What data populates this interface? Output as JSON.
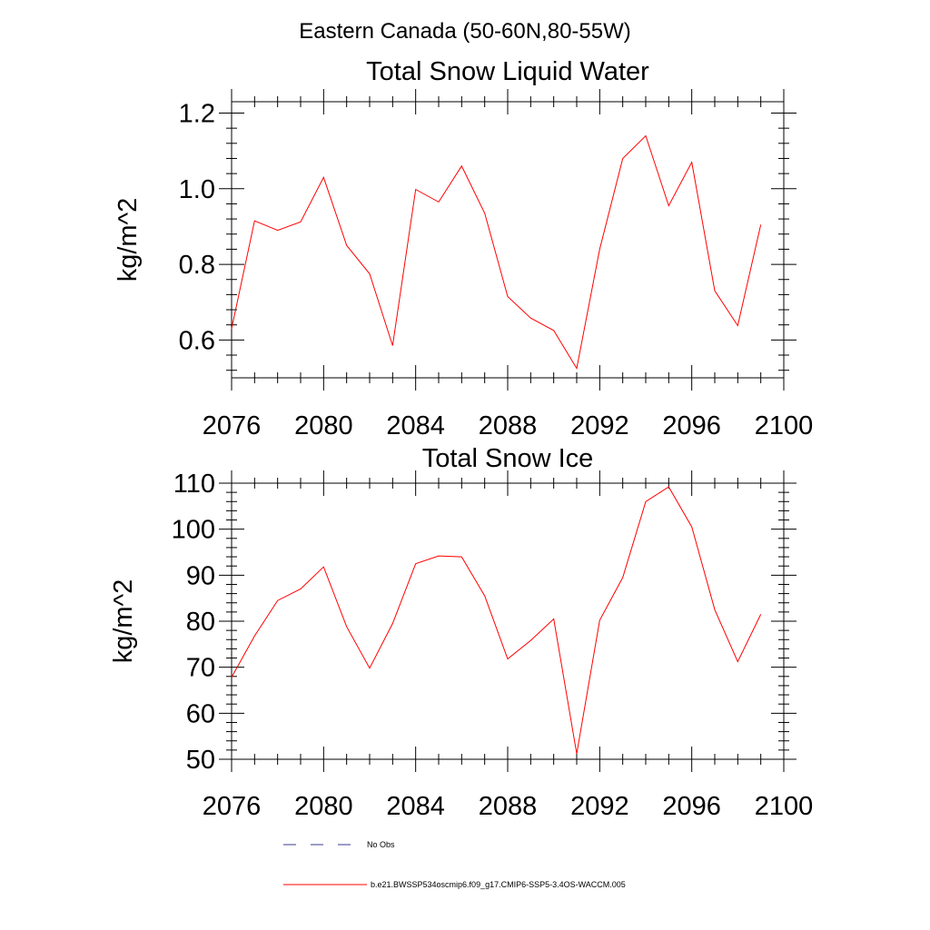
{
  "figure": {
    "suptitle": "Eastern Canada (50-60N,80-55W)"
  },
  "chart_data": [
    {
      "type": "line",
      "title": "Total Snow Liquid Water",
      "xlabel": "",
      "ylabel": "kg/m^2",
      "xlim": [
        2076,
        2100
      ],
      "ylim": [
        0.5,
        1.23
      ],
      "xticks": [
        2076,
        2080,
        2084,
        2088,
        2092,
        2096,
        2100
      ],
      "xtick_labels": [
        "2076",
        "2080",
        "2084",
        "2088",
        "2092",
        "2096",
        "2100"
      ],
      "yticks": [
        0.6,
        0.8,
        1.0,
        1.2
      ],
      "ytick_labels": [
        "0.6",
        "0.8",
        "1.0",
        "1.2"
      ],
      "series": [
        {
          "name": "b.e21.BWSSP534oscmip6.f09_g17.CMIP6-SSP5-3.4OS-WACCM.005",
          "color": "#ff0000",
          "x": [
            2076,
            2077,
            2078,
            2079,
            2080,
            2081,
            2082,
            2083,
            2084,
            2085,
            2086,
            2087,
            2088,
            2089,
            2090,
            2091,
            2092,
            2093,
            2094,
            2095,
            2096,
            2097,
            2098,
            2099
          ],
          "values": [
            0.63,
            0.915,
            0.89,
            0.912,
            1.03,
            0.85,
            0.775,
            0.585,
            0.998,
            0.965,
            1.06,
            0.935,
            0.715,
            0.658,
            0.625,
            0.525,
            0.84,
            1.08,
            1.14,
            0.955,
            1.07,
            0.73,
            0.638,
            0.905
          ]
        }
      ]
    },
    {
      "type": "line",
      "title": "Total Snow Ice",
      "xlabel": "",
      "ylabel": "kg/m^2",
      "xlim": [
        2076,
        2100
      ],
      "ylim": [
        50,
        110
      ],
      "xticks": [
        2076,
        2080,
        2084,
        2088,
        2092,
        2096,
        2100
      ],
      "xtick_labels": [
        "2076",
        "2080",
        "2084",
        "2088",
        "2092",
        "2096",
        "2100"
      ],
      "yticks": [
        50,
        60,
        70,
        80,
        90,
        100,
        110
      ],
      "ytick_labels": [
        "50",
        "60",
        "70",
        "80",
        "90",
        "100",
        "110"
      ],
      "series": [
        {
          "name": "b.e21.BWSSP534oscmip6.f09_g17.CMIP6-SSP5-3.4OS-WACCM.005",
          "color": "#ff0000",
          "x": [
            2076,
            2077,
            2078,
            2079,
            2080,
            2081,
            2082,
            2083,
            2084,
            2085,
            2086,
            2087,
            2088,
            2089,
            2090,
            2091,
            2092,
            2093,
            2094,
            2095,
            2096,
            2097,
            2098,
            2099
          ],
          "values": [
            67.8,
            76.8,
            84.5,
            87.0,
            91.8,
            78.8,
            69.8,
            79.5,
            92.5,
            94.2,
            94.0,
            85.5,
            71.8,
            75.8,
            80.5,
            51.2,
            80.2,
            89.5,
            106.0,
            109.2,
            100.5,
            82.5,
            71.2,
            81.5
          ]
        }
      ]
    }
  ],
  "legend": {
    "entries": [
      {
        "label": "No Obs",
        "style": "dashed",
        "color": "#3a3a8c"
      },
      {
        "label": "b.e21.BWSSP534oscmip6.f09_g17.CMIP6-SSP5-3.4OS-WACCM.005",
        "style": "solid",
        "color": "#ff0000"
      }
    ]
  }
}
